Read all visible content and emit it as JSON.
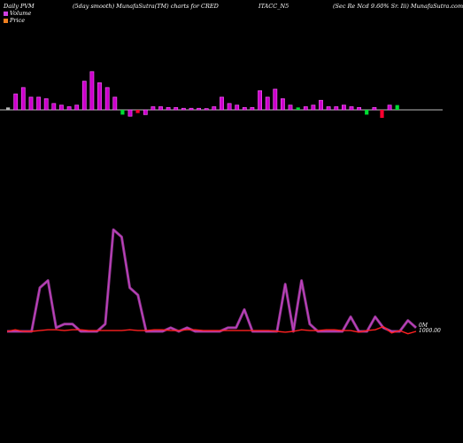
{
  "header": {
    "left": "Daily PVM",
    "center_a": "(5day smooth) MunafaSutra(TM) charts for CRED",
    "center_b": "ITACC_N5",
    "right": "(Sec Re   Ncd 9.60% Sr. Iii) MunafaSutra.com"
  },
  "legend": {
    "volume_label": "Volume",
    "price_label": "Price",
    "volume_color": "#d040e0",
    "price_color": "#f08020"
  },
  "end_labels": {
    "volume": "0M",
    "price": "1000.00"
  },
  "colors": {
    "background": "#000000",
    "volume_line": "#c040c0",
    "volume_glow": "#ff66ff",
    "price_line": "#ff2020",
    "bar_up": "#cc00cc",
    "bar_down": "#ff0030",
    "bar_green": "#00dd33",
    "bar_neutral": "#bbbbbb",
    "baseline": "#bbbbbb"
  },
  "chart_data": {
    "type": "bar",
    "title": "",
    "xlabel": "",
    "ylabel": "",
    "bars": {
      "values": [
        0.3,
        2.0,
        2.8,
        1.6,
        1.6,
        1.4,
        0.8,
        0.6,
        0.4,
        0.6,
        3.6,
        4.8,
        3.4,
        2.8,
        1.6,
        -0.6,
        -0.8,
        -0.4,
        -0.6,
        0.4,
        0.4,
        0.3,
        0.3,
        0.2,
        0.2,
        0.2,
        0.1,
        0.4,
        1.6,
        0.8,
        0.6,
        0.3,
        0.3,
        2.4,
        1.6,
        2.6,
        1.4,
        0.6,
        0.3,
        0.4,
        0.6,
        1.2,
        0.4,
        0.4,
        0.6,
        0.4,
        0.3,
        -0.6,
        0.3,
        -1.0,
        0.6,
        0.6
      ],
      "kinds": [
        "neutral",
        "up",
        "up",
        "up",
        "up",
        "up",
        "up",
        "up",
        "up",
        "up",
        "up",
        "up",
        "up",
        "up",
        "up",
        "green",
        "up",
        "down",
        "up",
        "up",
        "up",
        "up",
        "up",
        "up",
        "up",
        "up",
        "up",
        "up",
        "up",
        "up",
        "up",
        "up",
        "up",
        "up",
        "up",
        "up",
        "up",
        "up",
        "green",
        "up",
        "up",
        "up",
        "up",
        "up",
        "up",
        "up",
        "up",
        "green",
        "up",
        "down",
        "up",
        "green"
      ]
    },
    "volume_line": [
      0,
      0,
      0,
      0,
      6,
      7,
      0.5,
      1,
      1,
      0,
      0,
      0,
      1,
      14,
      13,
      6,
      5,
      0,
      0,
      0,
      0.5,
      0,
      0.5,
      0,
      0,
      0,
      0,
      0.5,
      0.5,
      3,
      0,
      0,
      0,
      0,
      6.5,
      0,
      7,
      1,
      0,
      0,
      0,
      0,
      2,
      0,
      0,
      2,
      0.5,
      0,
      0,
      1.5,
      0.5
    ],
    "price_line": [
      0,
      0.2,
      0,
      0,
      0.1,
      0.2,
      0.2,
      0.1,
      0.2,
      0.2,
      0.1,
      0.1,
      0.1,
      0.1,
      0.1,
      0.2,
      0.1,
      0.1,
      0.2,
      0.2,
      0.1,
      0.1,
      0.2,
      0.2,
      0.1,
      0.1,
      0.1,
      0.1,
      0.1,
      0.1,
      0.1,
      0.1,
      0.1,
      0,
      -0.1,
      0,
      0.2,
      0.1,
      0.1,
      0.2,
      0.2,
      0.1,
      0.1,
      -0.1,
      0.1,
      0.2,
      0.6,
      -0.2,
      0.1,
      -0.3,
      0
    ]
  }
}
